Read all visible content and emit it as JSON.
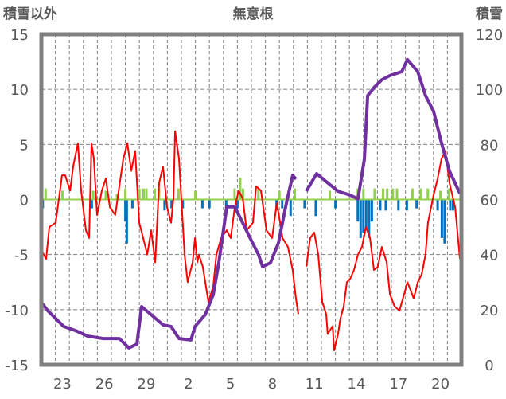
{
  "chart_data": {
    "type": "line",
    "title": "無意根",
    "ylabel_left": "積雪以外",
    "ylabel_right": "積雪",
    "ylim_left": [
      -15,
      15
    ],
    "ylim_right": [
      0,
      120
    ],
    "yticks_left": [
      "15",
      "10",
      "5",
      "0",
      "-5",
      "-10",
      "-15"
    ],
    "yticks_right": [
      "120",
      "100",
      "80",
      "60",
      "40",
      "20",
      "0"
    ],
    "xlim_days": [
      0,
      30
    ],
    "xtick_labels": [
      "23",
      "26",
      "29",
      "2",
      "5",
      "8",
      "11",
      "14",
      "17",
      "20"
    ],
    "grid": true,
    "colors": {
      "temperature": "#ff0000",
      "snow": "#7030a0",
      "green": "#92d050",
      "blue": "#0070c0",
      "frame": "#808080"
    },
    "series": [
      {
        "name": "temperature",
        "axis": "left",
        "points": [
          [
            0,
            -4.6
          ],
          [
            0.34,
            -5.4
          ],
          [
            0.57,
            -2.5
          ],
          [
            1.02,
            -2.1
          ],
          [
            1.48,
            2.2
          ],
          [
            1.7,
            2.2
          ],
          [
            2.05,
            0.8
          ],
          [
            2.27,
            3.0
          ],
          [
            2.61,
            5.1
          ],
          [
            2.84,
            0.8
          ],
          [
            3.18,
            -2.8
          ],
          [
            3.41,
            -3.5
          ],
          [
            3.58,
            5.1
          ],
          [
            3.75,
            3.7
          ],
          [
            3.98,
            -1.4
          ],
          [
            4.32,
            0.8
          ],
          [
            4.6,
            1.9
          ],
          [
            4.89,
            -0.7
          ],
          [
            5.28,
            -1.4
          ],
          [
            5.57,
            1.2
          ],
          [
            5.85,
            3.7
          ],
          [
            6.14,
            5.1
          ],
          [
            6.42,
            2.6
          ],
          [
            6.7,
            4.4
          ],
          [
            6.99,
            -2.1
          ],
          [
            7.27,
            -3.5
          ],
          [
            7.56,
            -5.0
          ],
          [
            7.84,
            -2.8
          ],
          [
            8.13,
            -5.7
          ],
          [
            8.41,
            1.5
          ],
          [
            8.69,
            3.0
          ],
          [
            8.98,
            -0.7
          ],
          [
            9.26,
            -2.1
          ],
          [
            9.43,
            0.1
          ],
          [
            9.55,
            6.2
          ],
          [
            9.83,
            3.7
          ],
          [
            10.23,
            -5.0
          ],
          [
            10.45,
            -7.5
          ],
          [
            10.8,
            -5.7
          ],
          [
            10.97,
            -3.5
          ],
          [
            11.14,
            -5.7
          ],
          [
            11.25,
            -5.0
          ],
          [
            11.53,
            -6.1
          ],
          [
            11.93,
            -9.3
          ],
          [
            12.27,
            -7.9
          ],
          [
            12.5,
            -5.0
          ],
          [
            12.84,
            -3.5
          ],
          [
            13.24,
            -2.8
          ],
          [
            13.52,
            -3.5
          ],
          [
            13.81,
            -0.7
          ],
          [
            14.09,
            0.8
          ],
          [
            14.38,
            0.1
          ],
          [
            14.66,
            -2.8
          ],
          [
            15.11,
            -2.1
          ],
          [
            15.34,
            1.2
          ],
          [
            15.68,
            0.8
          ],
          [
            16.08,
            -2.8
          ],
          [
            16.48,
            -3.5
          ],
          [
            16.82,
            -0.3
          ],
          [
            17.05,
            -2.1
          ],
          [
            17.22,
            -3.5
          ],
          [
            17.61,
            -4.3
          ],
          [
            17.95,
            -6.4
          ],
          [
            18.18,
            -9.0
          ],
          [
            18.35,
            -10.4
          ],
          null,
          [
            18.92,
            -6.1
          ],
          [
            19.2,
            -3.5
          ],
          [
            19.49,
            -3.0
          ],
          [
            19.77,
            -5.0
          ],
          [
            20.06,
            -9.3
          ],
          [
            20.34,
            -10.4
          ],
          [
            20.45,
            -12.2
          ],
          [
            20.8,
            -11.5
          ],
          [
            20.91,
            -13.7
          ],
          [
            21.19,
            -12.2
          ],
          [
            21.36,
            -10.8
          ],
          [
            21.59,
            -9.7
          ],
          [
            21.82,
            -7.5
          ],
          [
            22.05,
            -7.2
          ],
          [
            22.33,
            -6.4
          ],
          [
            22.61,
            -5.0
          ],
          [
            22.9,
            -4.3
          ],
          [
            23.18,
            -2.5
          ],
          [
            23.47,
            -3.5
          ],
          [
            23.75,
            -6.4
          ],
          [
            24.03,
            -6.1
          ],
          [
            24.32,
            -4.3
          ],
          [
            24.66,
            -5.7
          ],
          [
            24.89,
            -8.6
          ],
          [
            25.23,
            -9.7
          ],
          [
            25.57,
            -10.1
          ],
          [
            25.91,
            -8.6
          ],
          [
            26.14,
            -7.5
          ],
          [
            26.36,
            -8.2
          ],
          [
            26.59,
            -9.0
          ],
          [
            26.88,
            -7.5
          ],
          [
            27.16,
            -6.8
          ],
          [
            27.44,
            -5.0
          ],
          [
            27.61,
            -2.1
          ],
          [
            28.01,
            0.4
          ],
          [
            28.3,
            1.9
          ],
          [
            28.58,
            3.7
          ],
          [
            28.86,
            4.4
          ],
          [
            29.15,
            1.5
          ],
          [
            29.55,
            -0.7
          ],
          [
            29.89,
            -5.4
          ]
        ]
      },
      {
        "name": "snow",
        "axis": "right",
        "points": [
          [
            0,
            22.6
          ],
          [
            0.45,
            19.7
          ],
          [
            1.02,
            16.8
          ],
          [
            1.59,
            13.9
          ],
          [
            2.44,
            12.4
          ],
          [
            3.3,
            10.4
          ],
          [
            4.43,
            9.5
          ],
          [
            5.57,
            9.5
          ],
          [
            6.25,
            6.1
          ],
          [
            6.82,
            7.5
          ],
          [
            7.16,
            21.1
          ],
          [
            7.84,
            18.2
          ],
          [
            8.69,
            14.5
          ],
          [
            9.26,
            13.9
          ],
          [
            9.83,
            9.5
          ],
          [
            10.68,
            9.0
          ],
          [
            10.97,
            13.9
          ],
          [
            11.7,
            18.2
          ],
          [
            12.27,
            25.4
          ],
          [
            12.67,
            37.0
          ],
          [
            13.24,
            57.3
          ],
          [
            13.81,
            57.3
          ],
          [
            14.38,
            51.5
          ],
          [
            14.94,
            45.7
          ],
          [
            15.51,
            39.9
          ],
          [
            15.8,
            35.6
          ],
          [
            16.36,
            37.0
          ],
          [
            16.93,
            44.2
          ],
          [
            17.5,
            58.7
          ],
          [
            17.95,
            68.8
          ],
          [
            18.18,
            67.4
          ],
          null,
          [
            18.92,
            63.0
          ],
          [
            19.66,
            69.4
          ],
          [
            20.34,
            66.5
          ],
          [
            21.19,
            63.0
          ],
          [
            22.05,
            61.6
          ],
          [
            22.61,
            60.2
          ],
          [
            23.07,
            74.6
          ],
          [
            23.3,
            97.7
          ],
          [
            23.75,
            100.6
          ],
          [
            24.32,
            103.5
          ],
          [
            24.89,
            105.0
          ],
          [
            25.74,
            106.4
          ],
          [
            26.14,
            110.8
          ],
          [
            26.88,
            106.4
          ],
          [
            27.44,
            97.7
          ],
          [
            28.01,
            92.0
          ],
          [
            28.58,
            80.4
          ],
          [
            29.15,
            70.3
          ],
          [
            29.89,
            62.2
          ]
        ]
      },
      {
        "name": "green",
        "axis": "left",
        "type": "bar",
        "points": [
          [
            0.3,
            1
          ],
          [
            1.5,
            0.8
          ],
          [
            3.7,
            0.8
          ],
          [
            4.6,
            0.8
          ],
          [
            5.4,
            0.5
          ],
          [
            6.0,
            1
          ],
          [
            7.0,
            1
          ],
          [
            7.3,
            1
          ],
          [
            7.5,
            1
          ],
          [
            8.1,
            1
          ],
          [
            8.4,
            1
          ],
          [
            9.8,
            1
          ],
          [
            11.0,
            0.8
          ],
          [
            13.8,
            1
          ],
          [
            14.2,
            2
          ],
          [
            14.4,
            1
          ],
          [
            15.5,
            1
          ],
          [
            17.0,
            0.8
          ],
          [
            18.1,
            1
          ],
          [
            20.6,
            0.8
          ],
          [
            22.6,
            1
          ],
          [
            23.0,
            1
          ],
          [
            23.8,
            1
          ],
          [
            24.4,
            1
          ],
          [
            24.7,
            1
          ],
          [
            25.1,
            1
          ],
          [
            25.4,
            1
          ],
          [
            26.5,
            1
          ],
          [
            27.1,
            1
          ],
          [
            27.6,
            1
          ],
          [
            28.5,
            0.8
          ],
          [
            29.1,
            1
          ]
        ]
      },
      {
        "name": "blue",
        "axis": "left",
        "type": "bar",
        "points": [
          [
            0.1,
            -0.8
          ],
          [
            3.6,
            -0.8
          ],
          [
            6.0,
            -2
          ],
          [
            6.1,
            -4
          ],
          [
            6.5,
            -0.8
          ],
          [
            8.8,
            -1
          ],
          [
            9.3,
            -0.8
          ],
          [
            10.1,
            -0.8
          ],
          [
            11.5,
            -0.8
          ],
          [
            12.0,
            -0.8
          ],
          [
            13.2,
            -1
          ],
          [
            14.0,
            -0.8
          ],
          [
            16.8,
            -1
          ],
          [
            17.2,
            -0.8
          ],
          [
            17.8,
            -1.5
          ],
          [
            18.8,
            -0.8
          ],
          [
            19.6,
            -1.5
          ],
          [
            21.0,
            -0.8
          ],
          [
            22.6,
            -2
          ],
          [
            22.8,
            -3.5
          ],
          [
            23.0,
            -3
          ],
          [
            23.2,
            -2.8
          ],
          [
            23.4,
            -3.5
          ],
          [
            23.6,
            -2
          ],
          [
            24.2,
            -1
          ],
          [
            24.6,
            -1
          ],
          [
            25.5,
            -1
          ],
          [
            26.1,
            -1
          ],
          [
            26.8,
            -0.8
          ],
          [
            28.3,
            -1
          ],
          [
            28.6,
            -3.5
          ],
          [
            28.8,
            -4
          ],
          [
            29.2,
            -1
          ],
          [
            29.4,
            -1
          ]
        ]
      }
    ]
  }
}
